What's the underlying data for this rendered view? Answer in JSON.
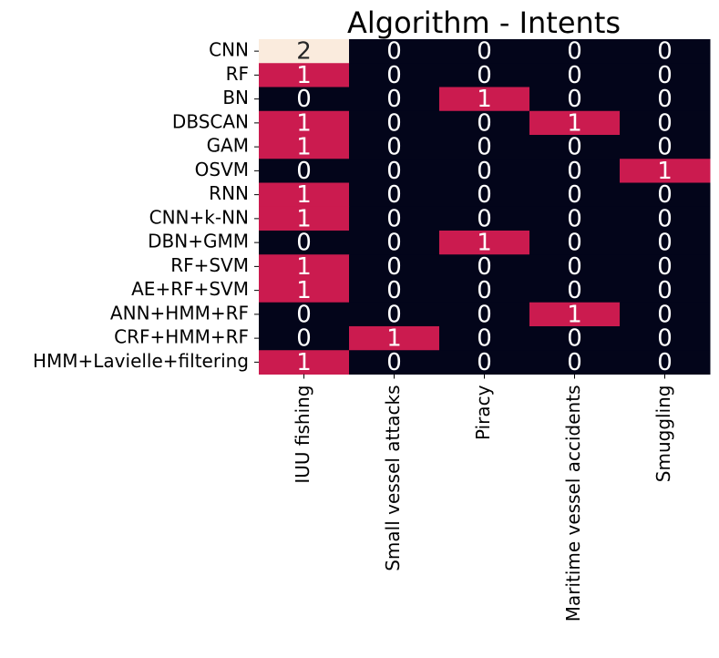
{
  "chart_data": {
    "type": "heatmap",
    "title": "Algorithm - Intents",
    "xlabel": "",
    "ylabel": "",
    "columns": [
      "IUU fishing",
      "Small vessel attacks",
      "Piracy",
      "Maritime vessel accidents",
      "Smuggling"
    ],
    "rows": [
      "CNN",
      "RF",
      "BN",
      "DBSCAN",
      "GAM",
      "OSVM",
      "RNN",
      "CNN+k-NN",
      "DBN+GMM",
      "RF+SVM",
      "AE+RF+SVM",
      "ANN+HMM+RF",
      "CRF+HMM+RF",
      "HMM+Lavielle+filtering"
    ],
    "values": [
      [
        2,
        0,
        0,
        0,
        0
      ],
      [
        1,
        0,
        0,
        0,
        0
      ],
      [
        0,
        0,
        1,
        0,
        0
      ],
      [
        1,
        0,
        0,
        1,
        0
      ],
      [
        1,
        0,
        0,
        0,
        0
      ],
      [
        0,
        0,
        0,
        0,
        1
      ],
      [
        1,
        0,
        0,
        0,
        0
      ],
      [
        1,
        0,
        0,
        0,
        0
      ],
      [
        0,
        0,
        1,
        0,
        0
      ],
      [
        1,
        0,
        0,
        0,
        0
      ],
      [
        1,
        0,
        0,
        0,
        0
      ],
      [
        0,
        0,
        0,
        1,
        0
      ],
      [
        0,
        1,
        0,
        0,
        0
      ],
      [
        1,
        0,
        0,
        0,
        0
      ]
    ],
    "value_range": [
      0,
      2
    ],
    "colors": {
      "0": "#03051a",
      "1": "#cb1b4f",
      "2": "#faebdd"
    },
    "annotation_colors": {
      "dark_cell": "#ffffff",
      "light_cell": "#262626"
    },
    "colorbar": false,
    "grid": false
  }
}
